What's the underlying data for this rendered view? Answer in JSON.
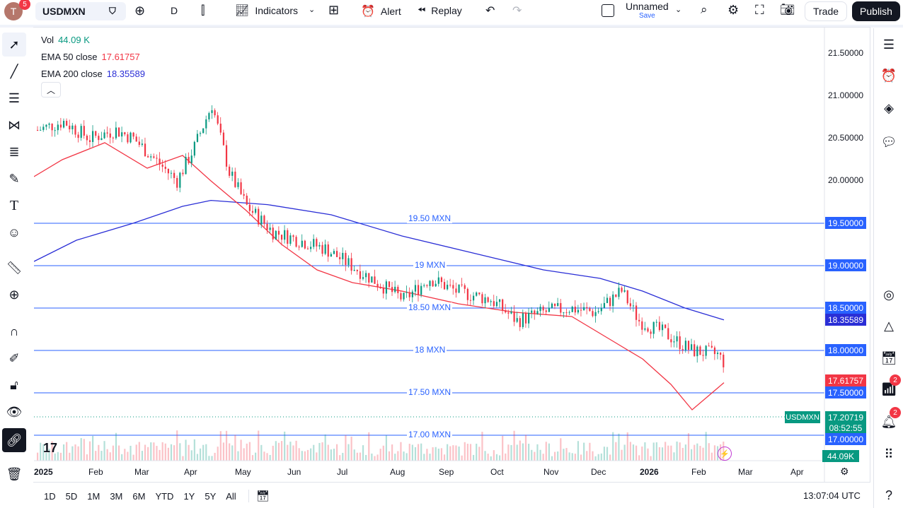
{
  "topbar": {
    "avatar_letter": "T",
    "avatar_badge": "5",
    "symbol": "USDMXN",
    "interval": "D",
    "indicators_label": "Indicators",
    "alert_label": "Alert",
    "replay_label": "Replay",
    "layout_name": "Unnamed",
    "layout_save": "Save",
    "trade_label": "Trade",
    "publish_label": "Publish"
  },
  "legend": {
    "vol_label": "Vol",
    "vol_value": "44.09 K",
    "ema50_label": "EMA 50 close",
    "ema50_value": "17.61757",
    "ema200_label": "EMA 200 close",
    "ema200_value": "18.35589"
  },
  "price_scale": [
    "21.50000",
    "21.00000",
    "20.50000",
    "20.00000"
  ],
  "horizontal_lines": [
    {
      "label": "19.50 MXN",
      "price": 19.5,
      "scale_label": "19.50000"
    },
    {
      "label": "19 MXN",
      "price": 19.0,
      "scale_label": "19.00000"
    },
    {
      "label": "18.50 MXN",
      "price": 18.5,
      "scale_label": "18.50000"
    },
    {
      "label": "18 MXN",
      "price": 18.0,
      "scale_label": "18.00000"
    },
    {
      "label": "17.50 MXN",
      "price": 17.5,
      "scale_label": "17.50000"
    },
    {
      "label": "17.00 MXN",
      "price": 17.0,
      "scale_label": "17.00000"
    }
  ],
  "badges": {
    "ema200": "18.35589",
    "ema50": "17.61757",
    "symbol_tag": "USDMXN",
    "last_price": "17.20719",
    "countdown": "08:52:55",
    "volume": "44.09K"
  },
  "time_axis": [
    "2025",
    "Feb",
    "Mar",
    "Apr",
    "May",
    "Jun",
    "Jul",
    "Aug",
    "Sep",
    "Oct",
    "Nov",
    "Dec",
    "2026",
    "Feb",
    "Mar",
    "Apr"
  ],
  "ranges": [
    "1D",
    "5D",
    "1M",
    "3M",
    "6M",
    "YTD",
    "1Y",
    "5Y",
    "All"
  ],
  "clock": "13:07:04 UTC",
  "right_badges": {
    "ideas": "2",
    "alerts": "2"
  },
  "colors": {
    "up": "#089981",
    "down": "#f23645",
    "ema50": "#f23645",
    "ema200": "#2a2ed6",
    "hline": "#2962ff"
  },
  "chart_data": {
    "type": "candlestick",
    "symbol": "USDMXN",
    "interval": "D",
    "y_range": [
      16.7,
      21.8
    ],
    "series": [
      {
        "name": "USDMXN",
        "approx_close_path": [
          [
            0,
            20.6
          ],
          [
            3,
            20.7
          ],
          [
            6,
            20.5
          ],
          [
            9,
            20.6
          ],
          [
            11,
            20.5
          ],
          [
            14,
            20.2
          ],
          [
            16,
            20.0
          ],
          [
            18,
            20.4
          ],
          [
            20,
            20.9
          ],
          [
            22,
            20.1
          ],
          [
            24,
            19.7
          ],
          [
            27,
            19.4
          ],
          [
            30,
            19.3
          ],
          [
            33,
            19.2
          ],
          [
            36,
            19.0
          ],
          [
            39,
            18.8
          ],
          [
            42,
            18.6
          ],
          [
            45,
            18.85
          ],
          [
            48,
            18.7
          ],
          [
            52,
            18.6
          ],
          [
            55,
            18.35
          ],
          [
            58,
            18.45
          ],
          [
            61,
            18.5
          ],
          [
            64,
            18.45
          ],
          [
            67,
            18.7
          ],
          [
            69,
            18.35
          ],
          [
            72,
            18.2
          ],
          [
            75,
            18.0
          ],
          [
            78,
            17.95
          ],
          [
            80,
            17.7
          ],
          [
            83,
            17.25
          ],
          [
            85,
            17.35
          ],
          [
            87,
            17.2
          ]
        ]
      },
      {
        "name": "EMA 50 close",
        "last": 17.61757
      },
      {
        "name": "EMA 200 close",
        "last": 18.35589
      }
    ],
    "last_price": 17.20719
  }
}
